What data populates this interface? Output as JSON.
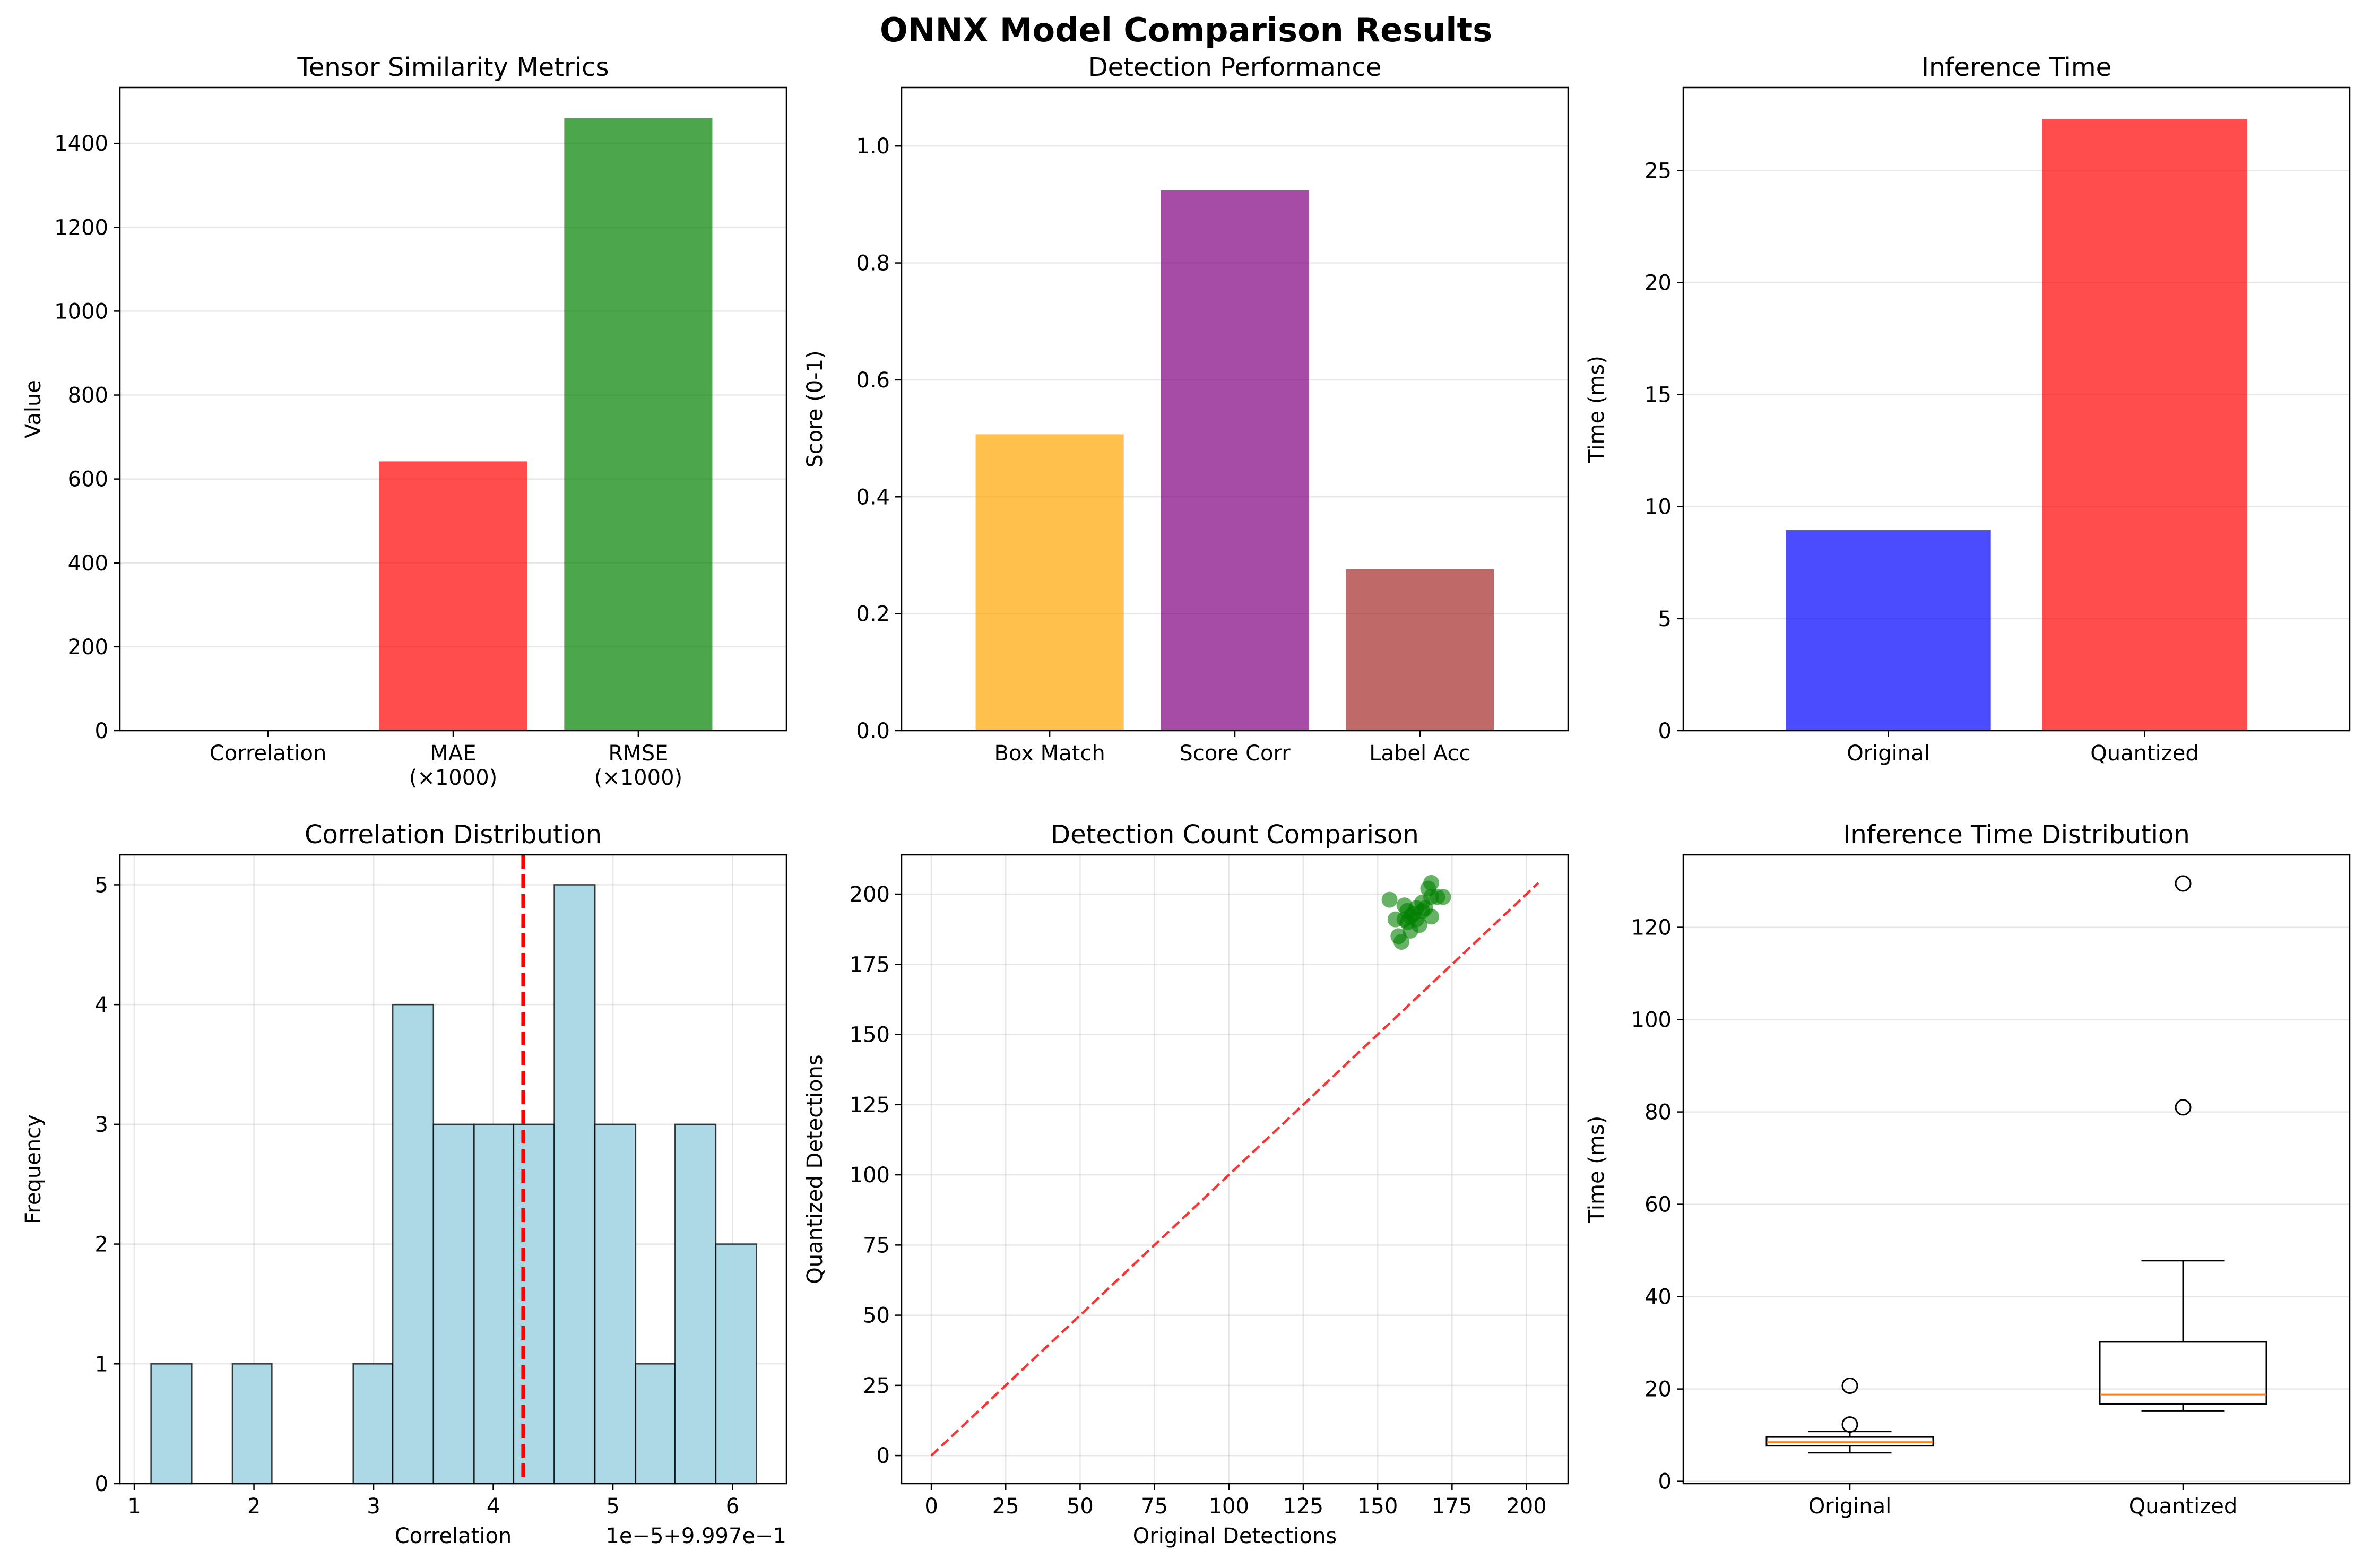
{
  "figure_title": "ONNX Model Comparison Results",
  "chart_data": [
    {
      "id": "similarity",
      "type": "bar",
      "title": "Tensor Similarity Metrics",
      "xlabel": "",
      "ylabel": "Value",
      "categories": [
        "Correlation",
        "MAE\n(×1000)",
        "RMSE\n(×1000)"
      ],
      "values": [
        0.99997,
        642,
        1460
      ],
      "colors": [
        "#0000ff",
        "#ff0000",
        "#008000"
      ],
      "ylim": [
        0,
        1533
      ],
      "yticks": [
        0,
        200,
        400,
        600,
        800,
        1000,
        1200,
        1400
      ],
      "grid": "y"
    },
    {
      "id": "detection",
      "type": "bar",
      "title": "Detection Performance",
      "xlabel": "",
      "ylabel": "Score (0-1)",
      "categories": [
        "Box Match",
        "Score Corr",
        "Label Acc"
      ],
      "values": [
        0.507,
        0.924,
        0.276
      ],
      "colors": [
        "#ffa500",
        "#800080",
        "#a52a2a"
      ],
      "ylim": [
        0,
        1.1
      ],
      "yticks": [
        0.0,
        0.2,
        0.4,
        0.6,
        0.8,
        1.0
      ],
      "ytick_format": "1f",
      "grid": "y"
    },
    {
      "id": "inference",
      "type": "bar",
      "title": "Inference Time",
      "xlabel": "",
      "ylabel": "Time (ms)",
      "categories": [
        "Original",
        "Quantized"
      ],
      "values": [
        8.95,
        27.3
      ],
      "colors": [
        "#0000ff",
        "#ff0000"
      ],
      "ylim": [
        0,
        28.7
      ],
      "yticks": [
        0,
        5,
        10,
        15,
        20,
        25
      ],
      "grid": "y"
    },
    {
      "id": "corrdist",
      "type": "histogram",
      "title": "Correlation Distribution",
      "xlabel": "Correlation",
      "ylabel": "Frequency",
      "offset_label": "1e−5+9.997e−1",
      "bin_edges": [
        1.14,
        1.48,
        1.82,
        2.15,
        2.49,
        2.83,
        3.16,
        3.5,
        3.84,
        4.17,
        4.51,
        4.85,
        5.19,
        5.52,
        5.86,
        6.2
      ],
      "counts": [
        1,
        0,
        1,
        0,
        0,
        1,
        4,
        3,
        3,
        3,
        5,
        3,
        1,
        3,
        2
      ],
      "mean_line": 4.25,
      "bar_color": "#add8e6",
      "line_color": "#ff0000",
      "xlim": [
        0.88,
        6.45
      ],
      "ylim": [
        0,
        5.25
      ],
      "xticks": [
        1,
        2,
        3,
        4,
        5,
        6
      ],
      "yticks": [
        0,
        1,
        2,
        3,
        4,
        5
      ],
      "grid": "both"
    },
    {
      "id": "detcount",
      "type": "scatter",
      "title": "Detection Count Comparison",
      "xlabel": "Original Detections",
      "ylabel": "Quantized Detections",
      "points": [
        [
          154,
          198
        ],
        [
          156,
          191
        ],
        [
          157,
          185
        ],
        [
          158,
          183
        ],
        [
          159,
          196
        ],
        [
          159,
          191
        ],
        [
          160,
          194
        ],
        [
          160,
          190
        ],
        [
          161,
          187
        ],
        [
          161,
          192
        ],
        [
          162,
          193
        ],
        [
          163,
          191
        ],
        [
          163,
          195
        ],
        [
          164,
          189
        ],
        [
          165,
          197
        ],
        [
          165,
          194
        ],
        [
          166,
          195
        ],
        [
          167,
          202
        ],
        [
          168,
          204
        ],
        [
          168,
          199
        ],
        [
          168,
          192
        ],
        [
          170,
          199
        ],
        [
          172,
          199
        ]
      ],
      "point_color": "#008000",
      "diagonal": [
        0,
        204
      ],
      "line_color": "#ff0000",
      "xlim": [
        -10,
        214
      ],
      "ylim": [
        -10,
        214
      ],
      "xticks": [
        0,
        25,
        50,
        75,
        100,
        125,
        150,
        175,
        200
      ],
      "yticks": [
        0,
        25,
        50,
        75,
        100,
        125,
        150,
        175,
        200
      ],
      "grid": "both"
    },
    {
      "id": "timedist",
      "type": "box",
      "title": "Inference Time Distribution",
      "xlabel": "",
      "ylabel": "Time (ms)",
      "categories": [
        "Original",
        "Quantized"
      ],
      "boxes": [
        {
          "whisker_low": 6.2,
          "q1": 7.7,
          "median": 8.5,
          "q3": 9.6,
          "whisker_high": 10.8,
          "outliers": [
            12.3,
            20.7
          ]
        },
        {
          "whisker_low": 15.2,
          "q1": 16.8,
          "median": 18.8,
          "q3": 30.2,
          "whisker_high": 47.8,
          "outliers": [
            81.0,
            129.5
          ]
        }
      ],
      "median_color": "#ff7f0e",
      "ylim": [
        -0.5,
        135.7
      ],
      "yticks": [
        0,
        20,
        40,
        60,
        80,
        100,
        120
      ],
      "grid": "y"
    }
  ]
}
